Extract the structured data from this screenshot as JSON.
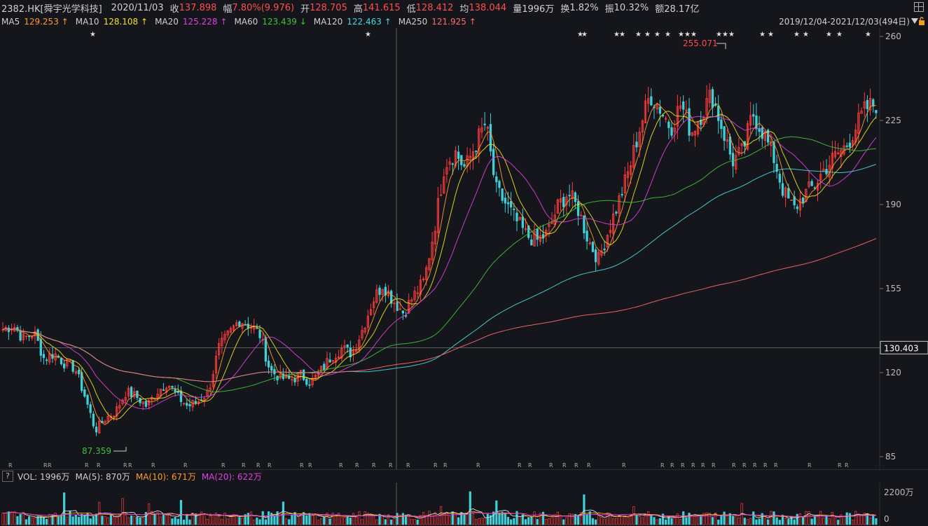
{
  "header": {
    "symbol": "2382.HK[舜宇光学科技]",
    "date": "2020/11/03",
    "close_label": "收",
    "close": "137.898",
    "change_label": "幅",
    "change": "7.80%(9.976)",
    "open_label": "开",
    "open": "128.705",
    "high_label": "高",
    "high": "141.615",
    "low_label": "低",
    "low": "128.412",
    "avg_label": "均",
    "avg": "138.044",
    "volume_label": "量",
    "volume": "1996万",
    "turnover_label": "换",
    "turnover": "1.82%",
    "amplitude_label": "振",
    "amplitude": "10.32%",
    "amount_label": "额",
    "amount": "28.17亿"
  },
  "ma": [
    {
      "label": "MA5",
      "value": "129.253",
      "arrow": "↑",
      "color": "#ff9a2e"
    },
    {
      "label": "MA10",
      "value": "128.108",
      "arrow": "↑",
      "color": "#f2e21e"
    },
    {
      "label": "MA20",
      "value": "125.228",
      "arrow": "↑",
      "color": "#e040e0"
    },
    {
      "label": "MA60",
      "value": "123.439",
      "arrow": "↓",
      "color": "#3cc43c"
    },
    {
      "label": "MA120",
      "value": "122.463",
      "arrow": "↑",
      "color": "#4ad8e0"
    },
    {
      "label": "MA250",
      "value": "121.925",
      "arrow": "↑",
      "color": "#ff6b6b"
    }
  ],
  "range": "2019/12/04-2021/12/03(494日)",
  "price_axis": {
    "ticks": [
      "260",
      "225",
      "190",
      "155",
      "120",
      "85"
    ],
    "crosshair_value": "130.403",
    "max_label": "255.071",
    "min_label": "87.359"
  },
  "volume": {
    "label": "VOL: 1996万",
    "ma5": "MA(5): 870万",
    "ma10": "MA(10): 671万",
    "ma20": "MA(20): 622万",
    "ma10_color": "#ff9a2e",
    "ma20_color": "#e040e0",
    "axis_top": "2200万",
    "axis_zero": "0",
    "help": "?"
  },
  "chart_data": {
    "type": "candlestick",
    "ylim": [
      85,
      260
    ],
    "y_ticks": [
      260,
      225,
      190,
      155,
      120,
      85
    ],
    "crosshair_price": 130.403,
    "max_price": 255.071,
    "min_price": 87.359,
    "price_path": [
      138,
      140,
      134,
      137,
      126,
      128,
      124,
      122,
      110,
      96,
      101,
      104,
      112,
      110,
      106,
      112,
      116,
      110,
      106,
      108,
      112,
      130,
      136,
      142,
      140,
      136,
      121,
      118,
      117,
      119,
      116,
      121,
      127,
      130,
      128,
      138,
      150,
      157,
      150,
      145,
      152,
      158,
      180,
      207,
      212,
      205,
      215,
      224,
      196,
      190,
      183,
      177,
      175,
      178,
      189,
      195,
      188,
      175,
      167,
      180,
      192,
      205,
      222,
      236,
      230,
      222,
      232,
      220,
      228,
      236,
      222,
      208,
      212,
      228,
      220,
      210,
      195,
      188,
      194,
      198,
      205,
      210,
      214,
      222,
      230,
      232
    ],
    "volume_ylim": [
      0,
      2200
    ]
  }
}
